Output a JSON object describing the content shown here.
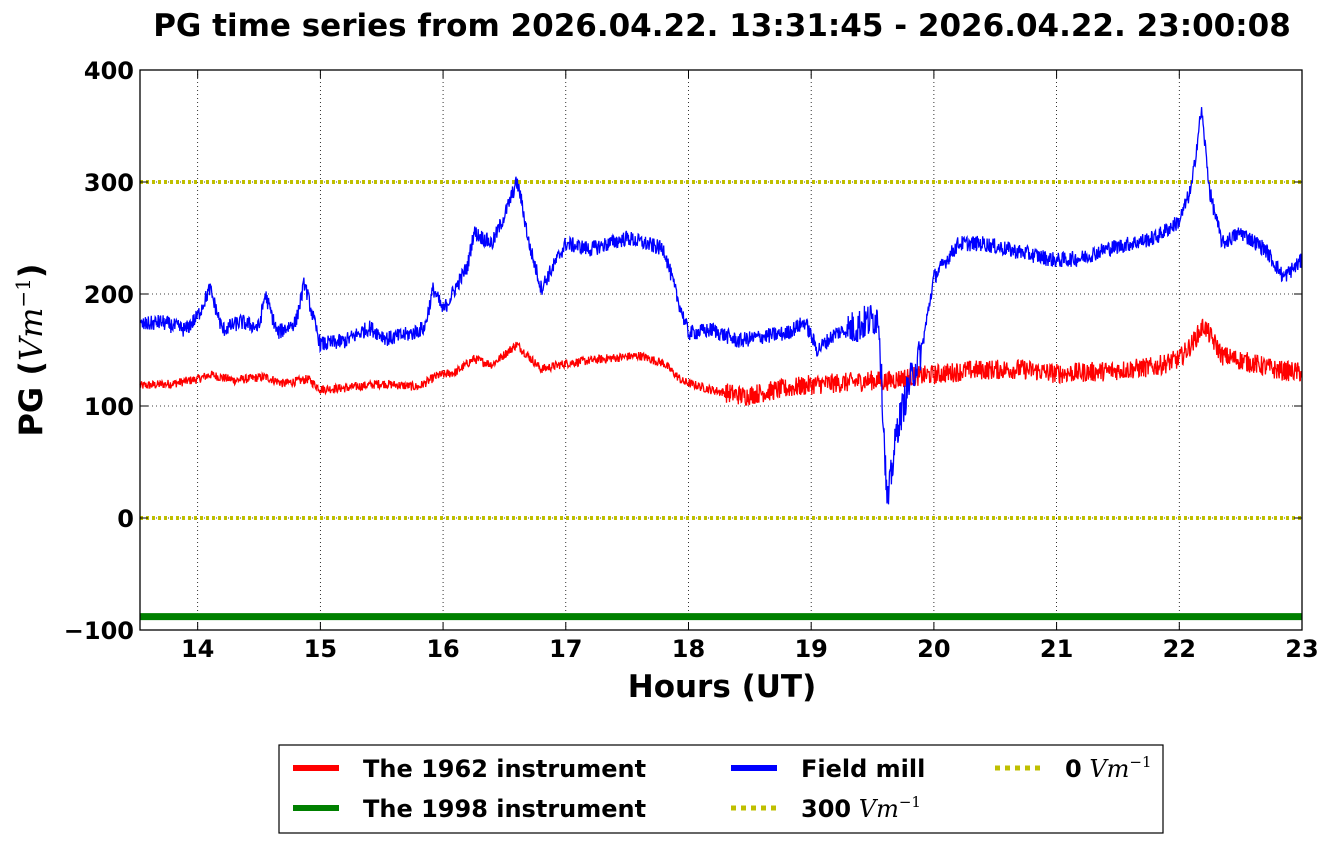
{
  "chart_data": {
    "type": "line",
    "title": "PG time series from 2026.04.22. 13:31:45 - 2026.04.22. 23:00:08",
    "xlabel": "Hours (UT)",
    "ylabel_text": "PG (",
    "ylabel_math": "Vm",
    "ylabel_exp": "−1",
    "ylabel_close": ")",
    "xlim": [
      13.53,
      23.0
    ],
    "ylim": [
      -100,
      400
    ],
    "x_ticks": [
      14,
      15,
      16,
      17,
      18,
      19,
      20,
      21,
      22,
      23
    ],
    "y_ticks": [
      -100,
      0,
      100,
      200,
      300,
      400
    ],
    "y_tick_labels": [
      "−100",
      "0",
      "100",
      "200",
      "300",
      "400"
    ],
    "grid": true,
    "legend_position": "bottom-center",
    "colors": {
      "instrument_1962": "#ff0000",
      "instrument_1998": "#008000",
      "field_mill": "#0000ff",
      "reference": "#bfbf00"
    },
    "series": [
      {
        "name": "The 1962 instrument",
        "color": "#ff0000",
        "x": [
          13.53,
          13.8,
          14.0,
          14.1,
          14.3,
          14.55,
          14.7,
          14.9,
          15.0,
          15.2,
          15.5,
          15.8,
          15.95,
          16.1,
          16.25,
          16.4,
          16.6,
          16.8,
          17.0,
          17.3,
          17.6,
          17.8,
          17.95,
          18.2,
          18.45,
          18.7,
          19.0,
          19.3,
          19.5,
          19.6,
          19.8,
          20.0,
          20.3,
          20.7,
          21.0,
          21.4,
          21.8,
          22.0,
          22.1,
          22.2,
          22.35,
          22.6,
          22.8,
          23.0
        ],
        "values": [
          118,
          120,
          124,
          128,
          123,
          126,
          120,
          124,
          115,
          116,
          120,
          117,
          127,
          130,
          142,
          137,
          155,
          133,
          138,
          142,
          145,
          138,
          122,
          114,
          109,
          114,
          119,
          121,
          123,
          122,
          126,
          128,
          132,
          133,
          129,
          131,
          135,
          142,
          155,
          172,
          145,
          138,
          132,
          130
        ]
      },
      {
        "name": "The 1998 instrument",
        "color": "#008000",
        "x": [
          13.53,
          23.0
        ],
        "values": [
          -88,
          -88
        ]
      },
      {
        "name": "Field mill",
        "color": "#0000ff",
        "x": [
          13.53,
          13.7,
          13.9,
          14.0,
          14.1,
          14.2,
          14.35,
          14.5,
          14.55,
          14.65,
          14.8,
          14.87,
          14.95,
          15.0,
          15.2,
          15.4,
          15.55,
          15.75,
          15.85,
          15.92,
          16.0,
          16.2,
          16.25,
          16.4,
          16.5,
          16.6,
          16.63,
          16.7,
          16.8,
          17.0,
          17.2,
          17.5,
          17.8,
          17.9,
          18.0,
          18.2,
          18.4,
          18.6,
          18.8,
          18.95,
          19.05,
          19.2,
          19.35,
          19.45,
          19.55,
          19.62,
          19.7,
          19.8,
          19.9,
          20.0,
          20.2,
          20.4,
          20.6,
          20.8,
          21.0,
          21.2,
          21.4,
          21.6,
          21.8,
          22.0,
          22.1,
          22.18,
          22.25,
          22.35,
          22.5,
          22.7,
          22.85,
          23.0
        ],
        "values": [
          172,
          175,
          168,
          180,
          205,
          168,
          175,
          170,
          200,
          165,
          175,
          210,
          175,
          155,
          158,
          170,
          160,
          165,
          170,
          205,
          185,
          225,
          255,
          245,
          270,
          300,
          288,
          245,
          205,
          245,
          240,
          250,
          240,
          200,
          165,
          168,
          158,
          162,
          165,
          175,
          150,
          165,
          170,
          175,
          180,
          10,
          80,
          120,
          150,
          215,
          245,
          245,
          240,
          235,
          230,
          232,
          240,
          245,
          250,
          265,
          295,
          365,
          290,
          245,
          255,
          240,
          215,
          230
        ]
      },
      {
        "name": "300",
        "name_unit": "Vm",
        "name_exp": "−1",
        "color": "#bfbf00",
        "x": [
          13.53,
          23.0
        ],
        "values": [
          300,
          300
        ]
      },
      {
        "name": "0",
        "name_unit": "Vm",
        "name_exp": "−1",
        "color": "#bfbf00",
        "x": [
          13.53,
          23.0
        ],
        "values": [
          0,
          0
        ]
      }
    ]
  },
  "legend": {
    "items": [
      {
        "label": "The 1962 instrument",
        "style": "solid",
        "color": "#ff0000"
      },
      {
        "label": "The 1998 instrument",
        "style": "solid",
        "color": "#008000"
      },
      {
        "label": "Field mill",
        "style": "solid",
        "color": "#0000ff"
      },
      {
        "label": "300",
        "unit": "Vm",
        "exp": "−1",
        "style": "dotted",
        "color": "#bfbf00"
      },
      {
        "label": "0",
        "unit": "Vm",
        "exp": "−1",
        "style": "dotted",
        "color": "#bfbf00"
      }
    ]
  }
}
